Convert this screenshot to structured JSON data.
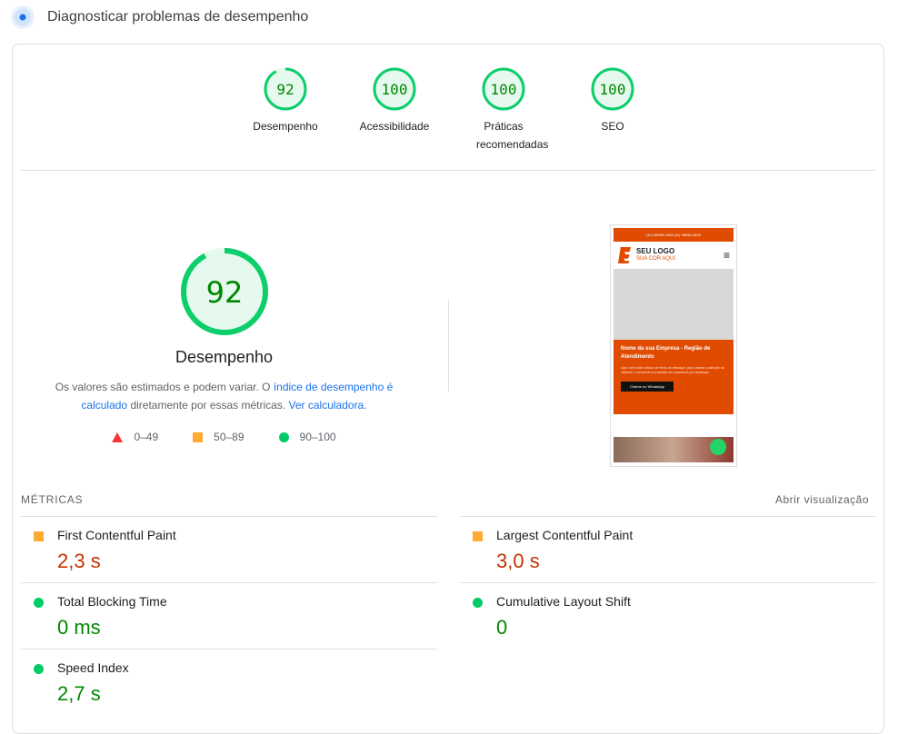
{
  "header": {
    "title": "Diagnosticar problemas de desempenho",
    "icon": "lighthouse-icon"
  },
  "categories": [
    {
      "score": 92,
      "label": "Desempenho"
    },
    {
      "score": 100,
      "label": "Acessibilidade"
    },
    {
      "score": 100,
      "label": "Práticas recomendadas"
    },
    {
      "score": 100,
      "label": "SEO"
    }
  ],
  "performance": {
    "score": 92,
    "title": "Desempenho",
    "desc_1": "Os valores são estimados e podem variar. O ",
    "link_1": "índice de desempenho é calculado",
    "desc_2": " diretamente por essas métricas. ",
    "link_2": "Ver calculadora",
    "desc_3": "."
  },
  "legend": [
    {
      "range": "0–49",
      "color": "#ff3333"
    },
    {
      "range": "50–89",
      "color": "#ffaa33"
    },
    {
      "range": "90–100",
      "color": "#00cc66"
    }
  ],
  "screenshot": {
    "phones": "(11) 98998-1628   (11) 98998-1628",
    "logo_1": "SEU LOGO",
    "logo_2": "SUA COR AQUI",
    "hero_title": "Nome da sua Empresa - Região de Atendimento",
    "hero_text": "Aqui você pode colocar um texto de destaque, para chamar a atenção do visitante e convencê-lo a solicitar um orçamento por whatsapp",
    "cta": "Chame no WhatsApp"
  },
  "metrics": {
    "title": "MÉTRICAS",
    "open_label": "Abrir visualização",
    "items": [
      {
        "name": "First Contentful Paint",
        "value": "2,3 s",
        "status": "average"
      },
      {
        "name": "Largest Contentful Paint",
        "value": "3,0 s",
        "status": "average"
      },
      {
        "name": "Total Blocking Time",
        "value": "0 ms",
        "status": "pass"
      },
      {
        "name": "Cumulative Layout Shift",
        "value": "0",
        "status": "pass"
      },
      {
        "name": "Speed Index",
        "value": "2,7 s",
        "status": "pass"
      }
    ]
  }
}
